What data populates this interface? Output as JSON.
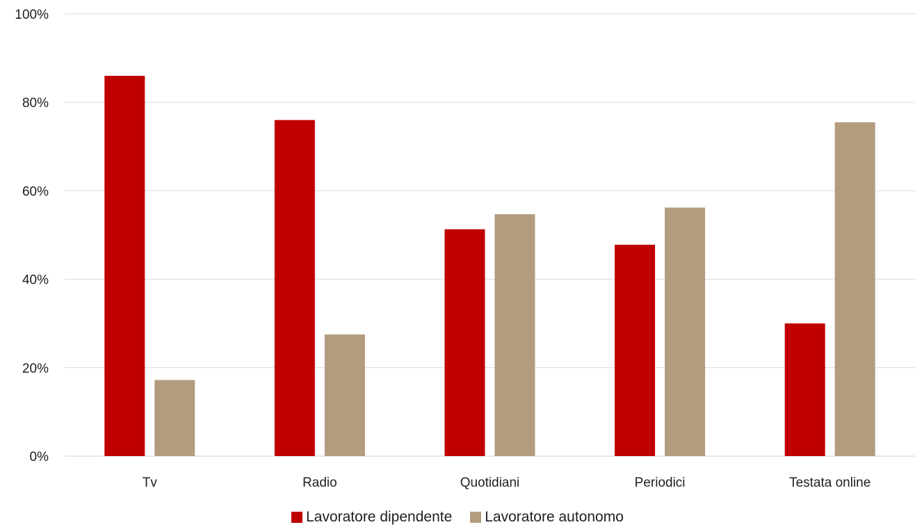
{
  "chart_data": {
    "type": "bar",
    "categories": [
      "Tv",
      "Radio",
      "Quotidiani",
      "Periodici",
      "Testata online"
    ],
    "series": [
      {
        "name": "Lavoratore dipendente",
        "color": "#c00000",
        "values": [
          86,
          76,
          51.3,
          47.8,
          30
        ]
      },
      {
        "name": "Lavoratore autonomo",
        "color": "#b39c7d",
        "values": [
          17.2,
          27.5,
          54.7,
          56.2,
          75.5
        ]
      }
    ],
    "y_ticks": [
      "0%",
      "20%",
      "40%",
      "60%",
      "80%",
      "100%"
    ],
    "ylim": [
      0,
      100
    ],
    "grid": true,
    "legend_position": "bottom"
  }
}
